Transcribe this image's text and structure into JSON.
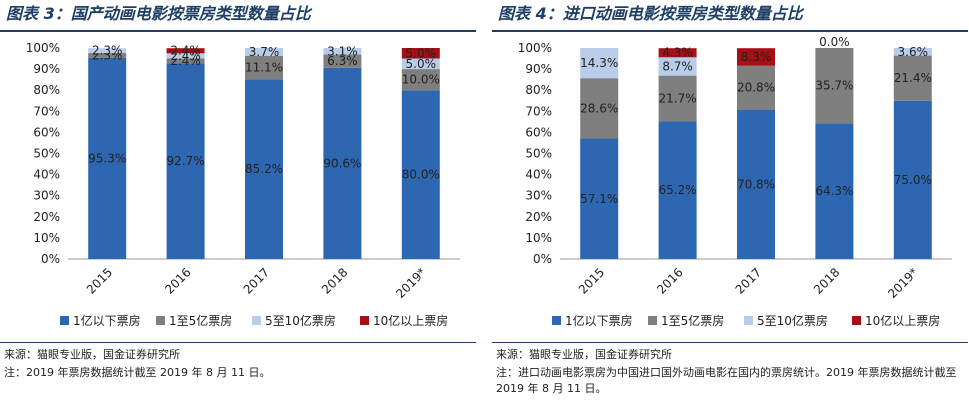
{
  "panels": [
    {
      "title": "图表 3：国产动画电影按票房类型数量占比",
      "source": "来源：猫眼专业版，国金证券研究所",
      "note": "注：2019 年票房数据统计截至 2019 年 8 月 11 日。",
      "chart_data": {
        "type": "bar",
        "stacked": true,
        "categories": [
          "2015",
          "2016",
          "2017",
          "2018",
          "2019*"
        ],
        "ylim": [
          0,
          100
        ],
        "yticks": [
          "0%",
          "10%",
          "20%",
          "30%",
          "40%",
          "50%",
          "60%",
          "70%",
          "80%",
          "90%",
          "100%"
        ],
        "legend_position": "bottom",
        "series": [
          {
            "name": "1亿以下票房",
            "color": "#2e67b1",
            "values": [
              95.3,
              92.7,
              85.2,
              90.6,
              80.0
            ],
            "labels": [
              "95.3%",
              "92.7%",
              "85.2%",
              "90.6%",
              "80.0%"
            ]
          },
          {
            "name": "1至5亿票房",
            "color": "#7f7f7f",
            "values": [
              2.3,
              2.4,
              11.1,
              6.3,
              10.0
            ],
            "labels": [
              "2.3%",
              "2.4%",
              "11.1%",
              "6.3%",
              "10.0%"
            ]
          },
          {
            "name": "5至10亿票房",
            "color": "#b9cdea",
            "values": [
              2.3,
              2.4,
              3.7,
              3.1,
              5.0
            ],
            "labels": [
              "2.3%",
              "2.4%",
              "3.7%",
              "3.1%",
              "5.0%"
            ]
          },
          {
            "name": "10亿以上票房",
            "color": "#a50f15",
            "values": [
              0,
              2.4,
              0,
              0,
              5.0
            ],
            "labels": [
              "",
              "2.4%",
              "",
              "",
              "5.0%"
            ]
          }
        ]
      }
    },
    {
      "title": "图表 4：进口动画电影按票房类型数量占比",
      "source": "来源：猫眼专业版，国金证券研究所",
      "note": "注：进口动画电影票房为中国进口国外动画电影在国内的票房统计。2019 年票房数据统计截至 2019 年 8 月 11 日。",
      "chart_data": {
        "type": "bar",
        "stacked": true,
        "categories": [
          "2015",
          "2016",
          "2017",
          "2018",
          "2019*"
        ],
        "ylim": [
          0,
          100
        ],
        "yticks": [
          "0%",
          "10%",
          "20%",
          "30%",
          "40%",
          "50%",
          "60%",
          "70%",
          "80%",
          "90%",
          "100%"
        ],
        "legend_position": "bottom",
        "series": [
          {
            "name": "1亿以下票房",
            "color": "#2e67b1",
            "values": [
              57.1,
              65.2,
              70.8,
              64.3,
              75.0
            ],
            "labels": [
              "57.1%",
              "65.2%",
              "70.8%",
              "64.3%",
              "75.0%"
            ]
          },
          {
            "name": "1至5亿票房",
            "color": "#7f7f7f",
            "values": [
              28.6,
              21.7,
              20.8,
              35.7,
              21.4
            ],
            "labels": [
              "28.6%",
              "21.7%",
              "20.8%",
              "35.7%",
              "21.4%"
            ]
          },
          {
            "name": "5至10亿票房",
            "color": "#b9cdea",
            "values": [
              14.3,
              8.7,
              0,
              0.0,
              3.6
            ],
            "labels": [
              "14.3%",
              "8.7%",
              "",
              "0.0%",
              "3.6%"
            ]
          },
          {
            "name": "10亿以上票房",
            "color": "#a50f15",
            "values": [
              0,
              4.3,
              8.3,
              0,
              0
            ],
            "labels": [
              "",
              "4.3%",
              "8.3%",
              "",
              ""
            ]
          }
        ]
      }
    }
  ]
}
